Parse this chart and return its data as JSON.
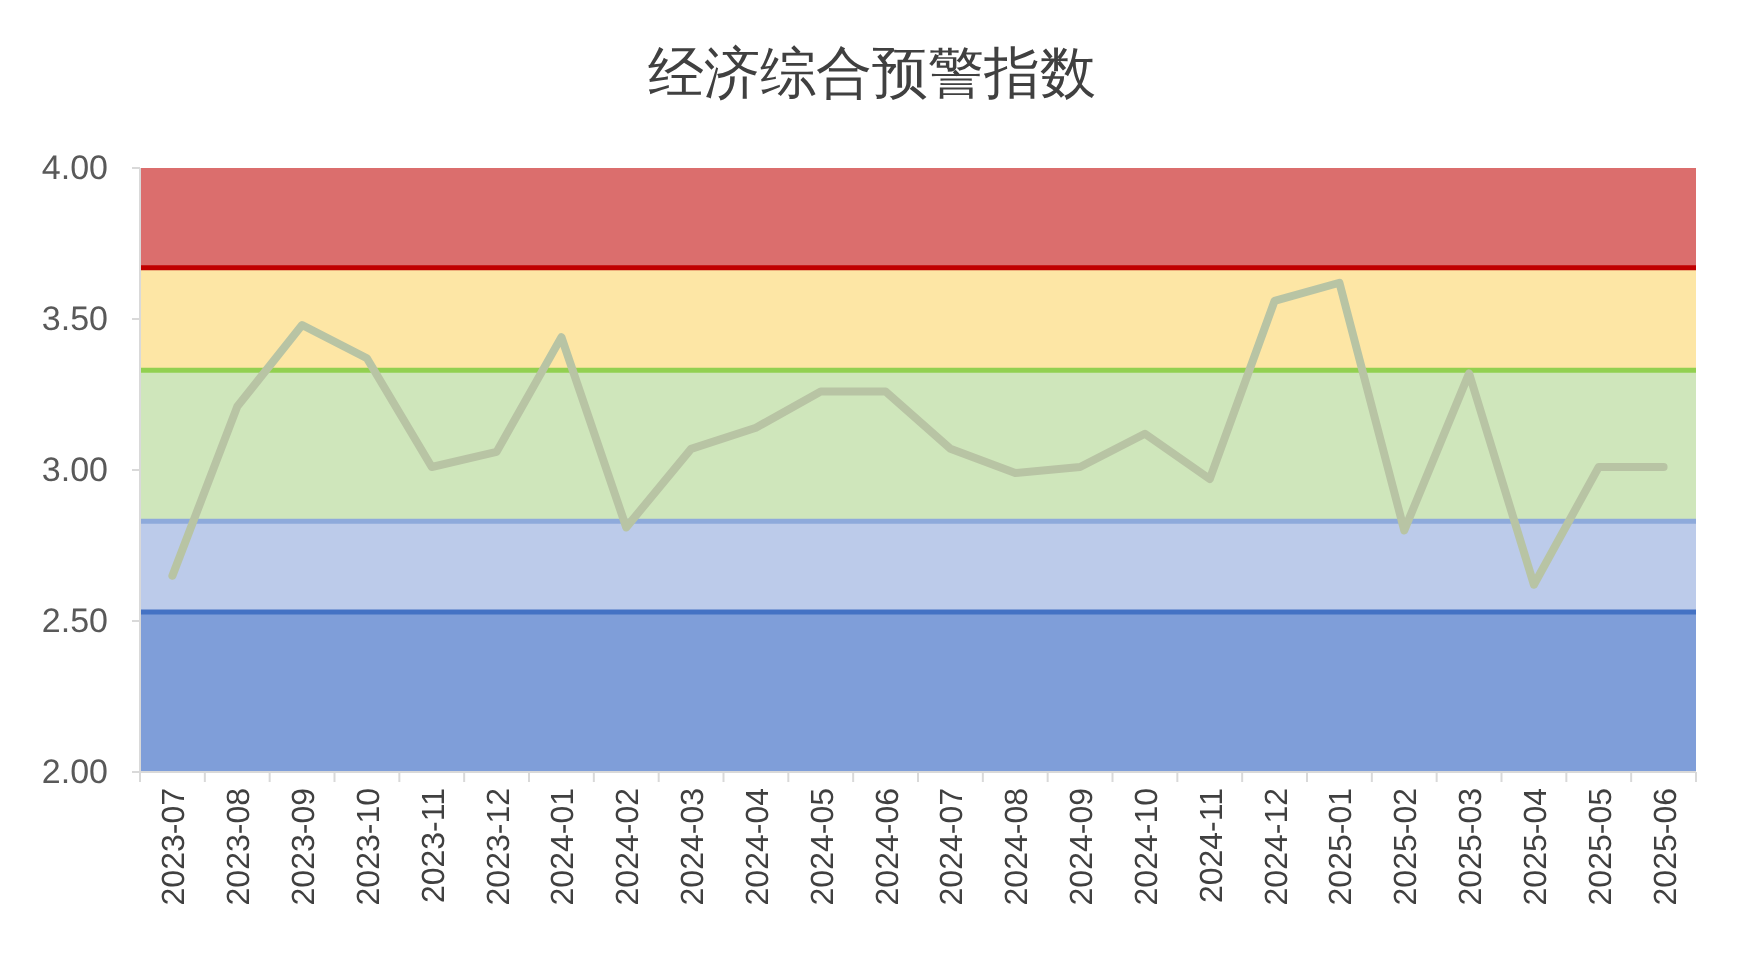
{
  "chart_data": {
    "type": "line",
    "title": "经济综合预警指数",
    "categories": [
      "2023-07",
      "2023-08",
      "2023-09",
      "2023-10",
      "2023-11",
      "2023-12",
      "2024-01",
      "2024-02",
      "2024-03",
      "2024-04",
      "2024-05",
      "2024-06",
      "2024-07",
      "2024-08",
      "2024-09",
      "2024-10",
      "2024-11",
      "2024-12",
      "2025-01",
      "2025-02",
      "2025-03",
      "2025-04",
      "2025-05",
      "2025-06"
    ],
    "series": [
      {
        "color": "#b8c4a4",
        "values": [
          2.65,
          3.21,
          3.48,
          3.37,
          3.01,
          3.06,
          3.44,
          2.81,
          3.07,
          3.14,
          3.26,
          3.26,
          3.07,
          2.99,
          3.01,
          3.12,
          2.97,
          3.56,
          3.62,
          2.8,
          3.32,
          2.62,
          3.01,
          3.01
        ]
      }
    ],
    "ylim": [
      2,
      4
    ],
    "yticks": [
      {
        "value": 2,
        "label": "2.00"
      },
      {
        "value": 2.5,
        "label": "2.50"
      },
      {
        "value": 3,
        "label": "3.00"
      },
      {
        "value": 3.5,
        "label": "3.50"
      },
      {
        "value": 4,
        "label": "4.00"
      }
    ],
    "bands": [
      {
        "axis": "y",
        "from": 2,
        "to": 2.53,
        "color": "#7f9ed9"
      },
      {
        "axis": "y",
        "from": 2.53,
        "to": 2.83,
        "color": "#bccbea"
      },
      {
        "axis": "y",
        "from": 2.83,
        "to": 3.33,
        "color": "#cfe6bb"
      },
      {
        "axis": "y",
        "from": 3.33,
        "to": 3.67,
        "color": "#fde6a5"
      },
      {
        "axis": "y",
        "from": 3.67,
        "to": 4,
        "color": "#db6e6d"
      }
    ],
    "ref_lines": [
      {
        "axis": "y",
        "value": 3.67,
        "color": "#c00000"
      },
      {
        "axis": "y",
        "value": 3.33,
        "color": "#92d050"
      },
      {
        "axis": "y",
        "value": 2.83,
        "color": "#8eaadb"
      },
      {
        "axis": "y",
        "value": 2.53,
        "color": "#4472c4"
      }
    ],
    "grid": false,
    "line_style": "solid",
    "marker": "none"
  }
}
